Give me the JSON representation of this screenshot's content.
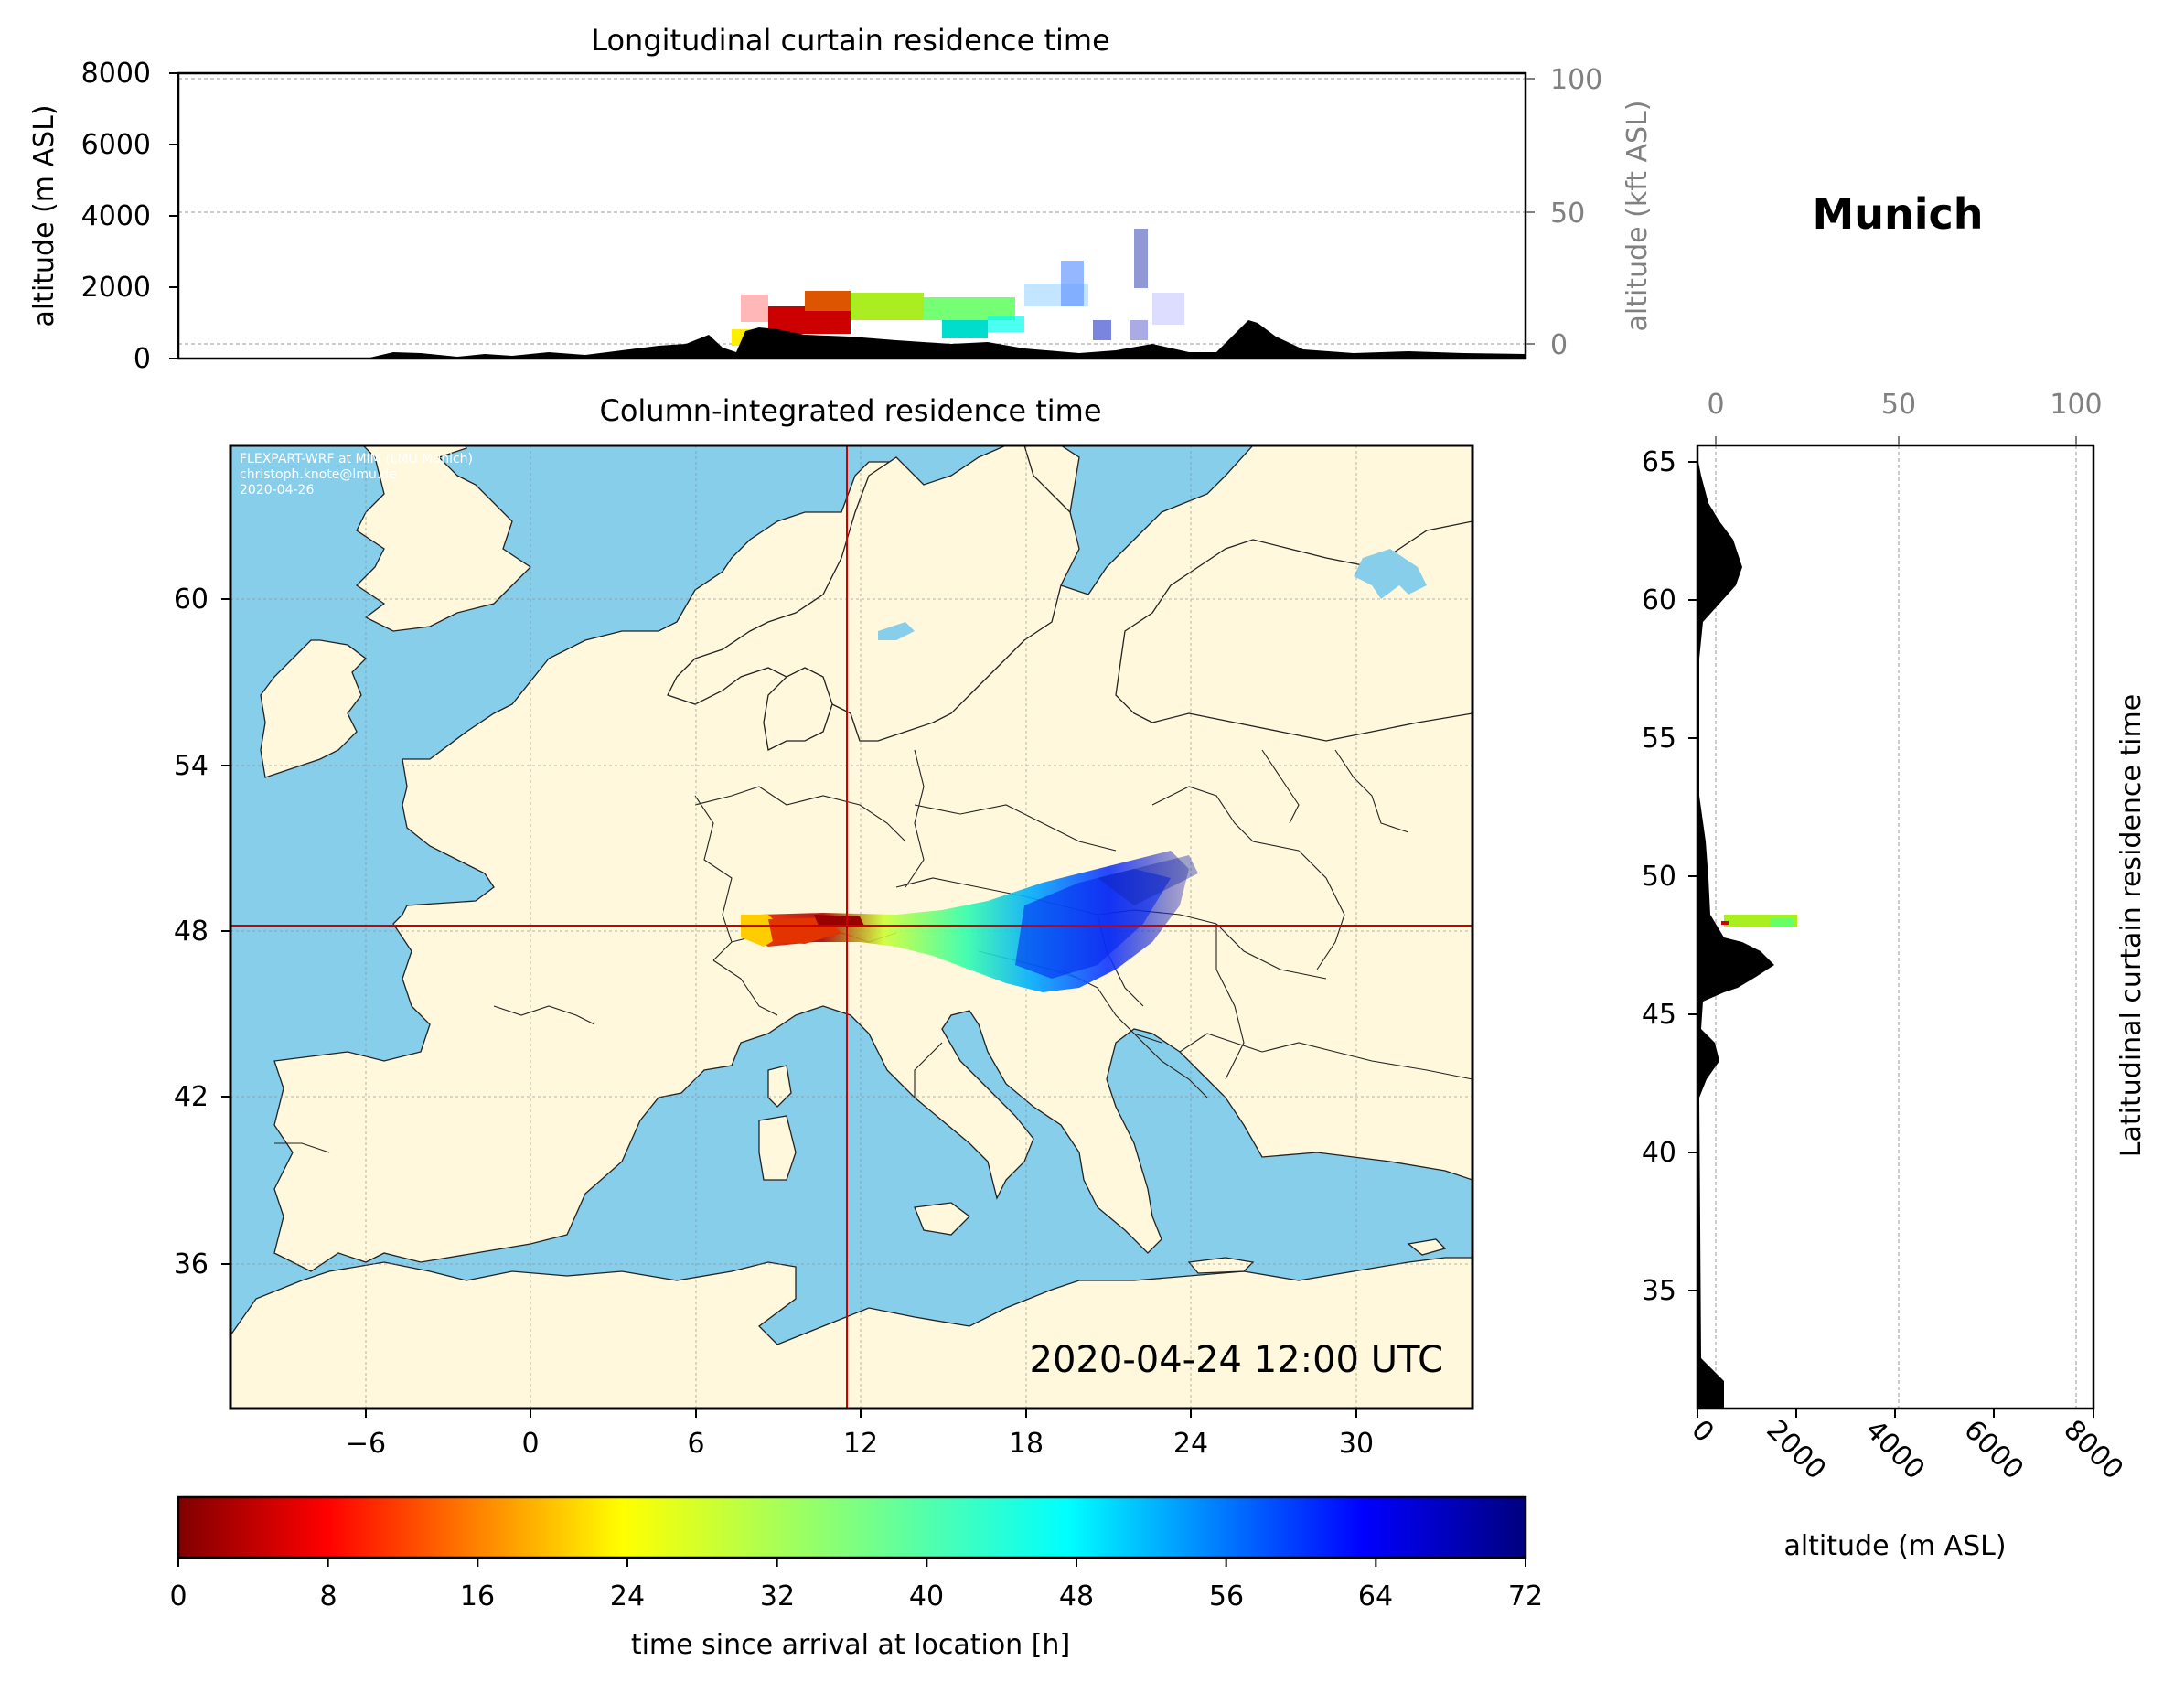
{
  "location": "Munich",
  "timestamp": "2020-04-24 12:00 UTC",
  "credits": [
    "FLEXPART-WRF at MIM (LMU Munich)",
    "christoph.knote@lmu.de",
    "2020-04-26"
  ],
  "colors": {
    "ocean": "#87ceeb",
    "land": "#fff8dc",
    "crosshair": "#cc0000",
    "terrain": "#000000"
  },
  "longitudinal_panel": {
    "title": "Longitudinal curtain residence time",
    "ylabel": "altitude (m ASL)",
    "ylabel_right": "altitude (kft ASL)",
    "yticks": [
      "0",
      "2000",
      "4000",
      "6000",
      "8000"
    ],
    "yticks_right": [
      "0",
      "50",
      "100"
    ]
  },
  "map_panel": {
    "title": "Column-integrated residence time",
    "xticks": [
      "−6",
      "0",
      "6",
      "12",
      "18",
      "24",
      "30"
    ],
    "yticks": [
      "36",
      "42",
      "48",
      "54",
      "60"
    ],
    "crosshair": {
      "lon": 11.5,
      "lat": 48.1
    }
  },
  "latitudinal_panel": {
    "ylabel_right": "Latitudinal curtain residence time",
    "xlabel": "altitude (m ASL)",
    "xticks": [
      "0",
      "2000",
      "4000",
      "6000",
      "8000"
    ],
    "xticks_top": [
      "0",
      "50",
      "100"
    ],
    "yticks": [
      "35",
      "40",
      "45",
      "50",
      "55",
      "60",
      "65"
    ]
  },
  "colorbar": {
    "label": "time since arrival at location [h]",
    "ticks": [
      "0",
      "8",
      "16",
      "24",
      "32",
      "40",
      "48",
      "56",
      "64",
      "72"
    ],
    "range": [
      0,
      72
    ],
    "colormap": "jet_r"
  },
  "chart_data": {
    "type": "heatmap",
    "plume": [
      {
        "lon": 7.8,
        "lat": 48.0,
        "hours": 10
      },
      {
        "lon": 9.5,
        "lat": 48.2,
        "hours": 4
      },
      {
        "lon": 11.5,
        "lat": 48.3,
        "hours": 18
      },
      {
        "lon": 13.5,
        "lat": 48.0,
        "hours": 30
      },
      {
        "lon": 15.5,
        "lat": 47.7,
        "hours": 42
      },
      {
        "lon": 18.0,
        "lat": 47.6,
        "hours": 55
      },
      {
        "lon": 20.5,
        "lat": 48.0,
        "hours": 62
      },
      {
        "lon": 23.0,
        "lat": 49.0,
        "hours": 70
      }
    ]
  }
}
